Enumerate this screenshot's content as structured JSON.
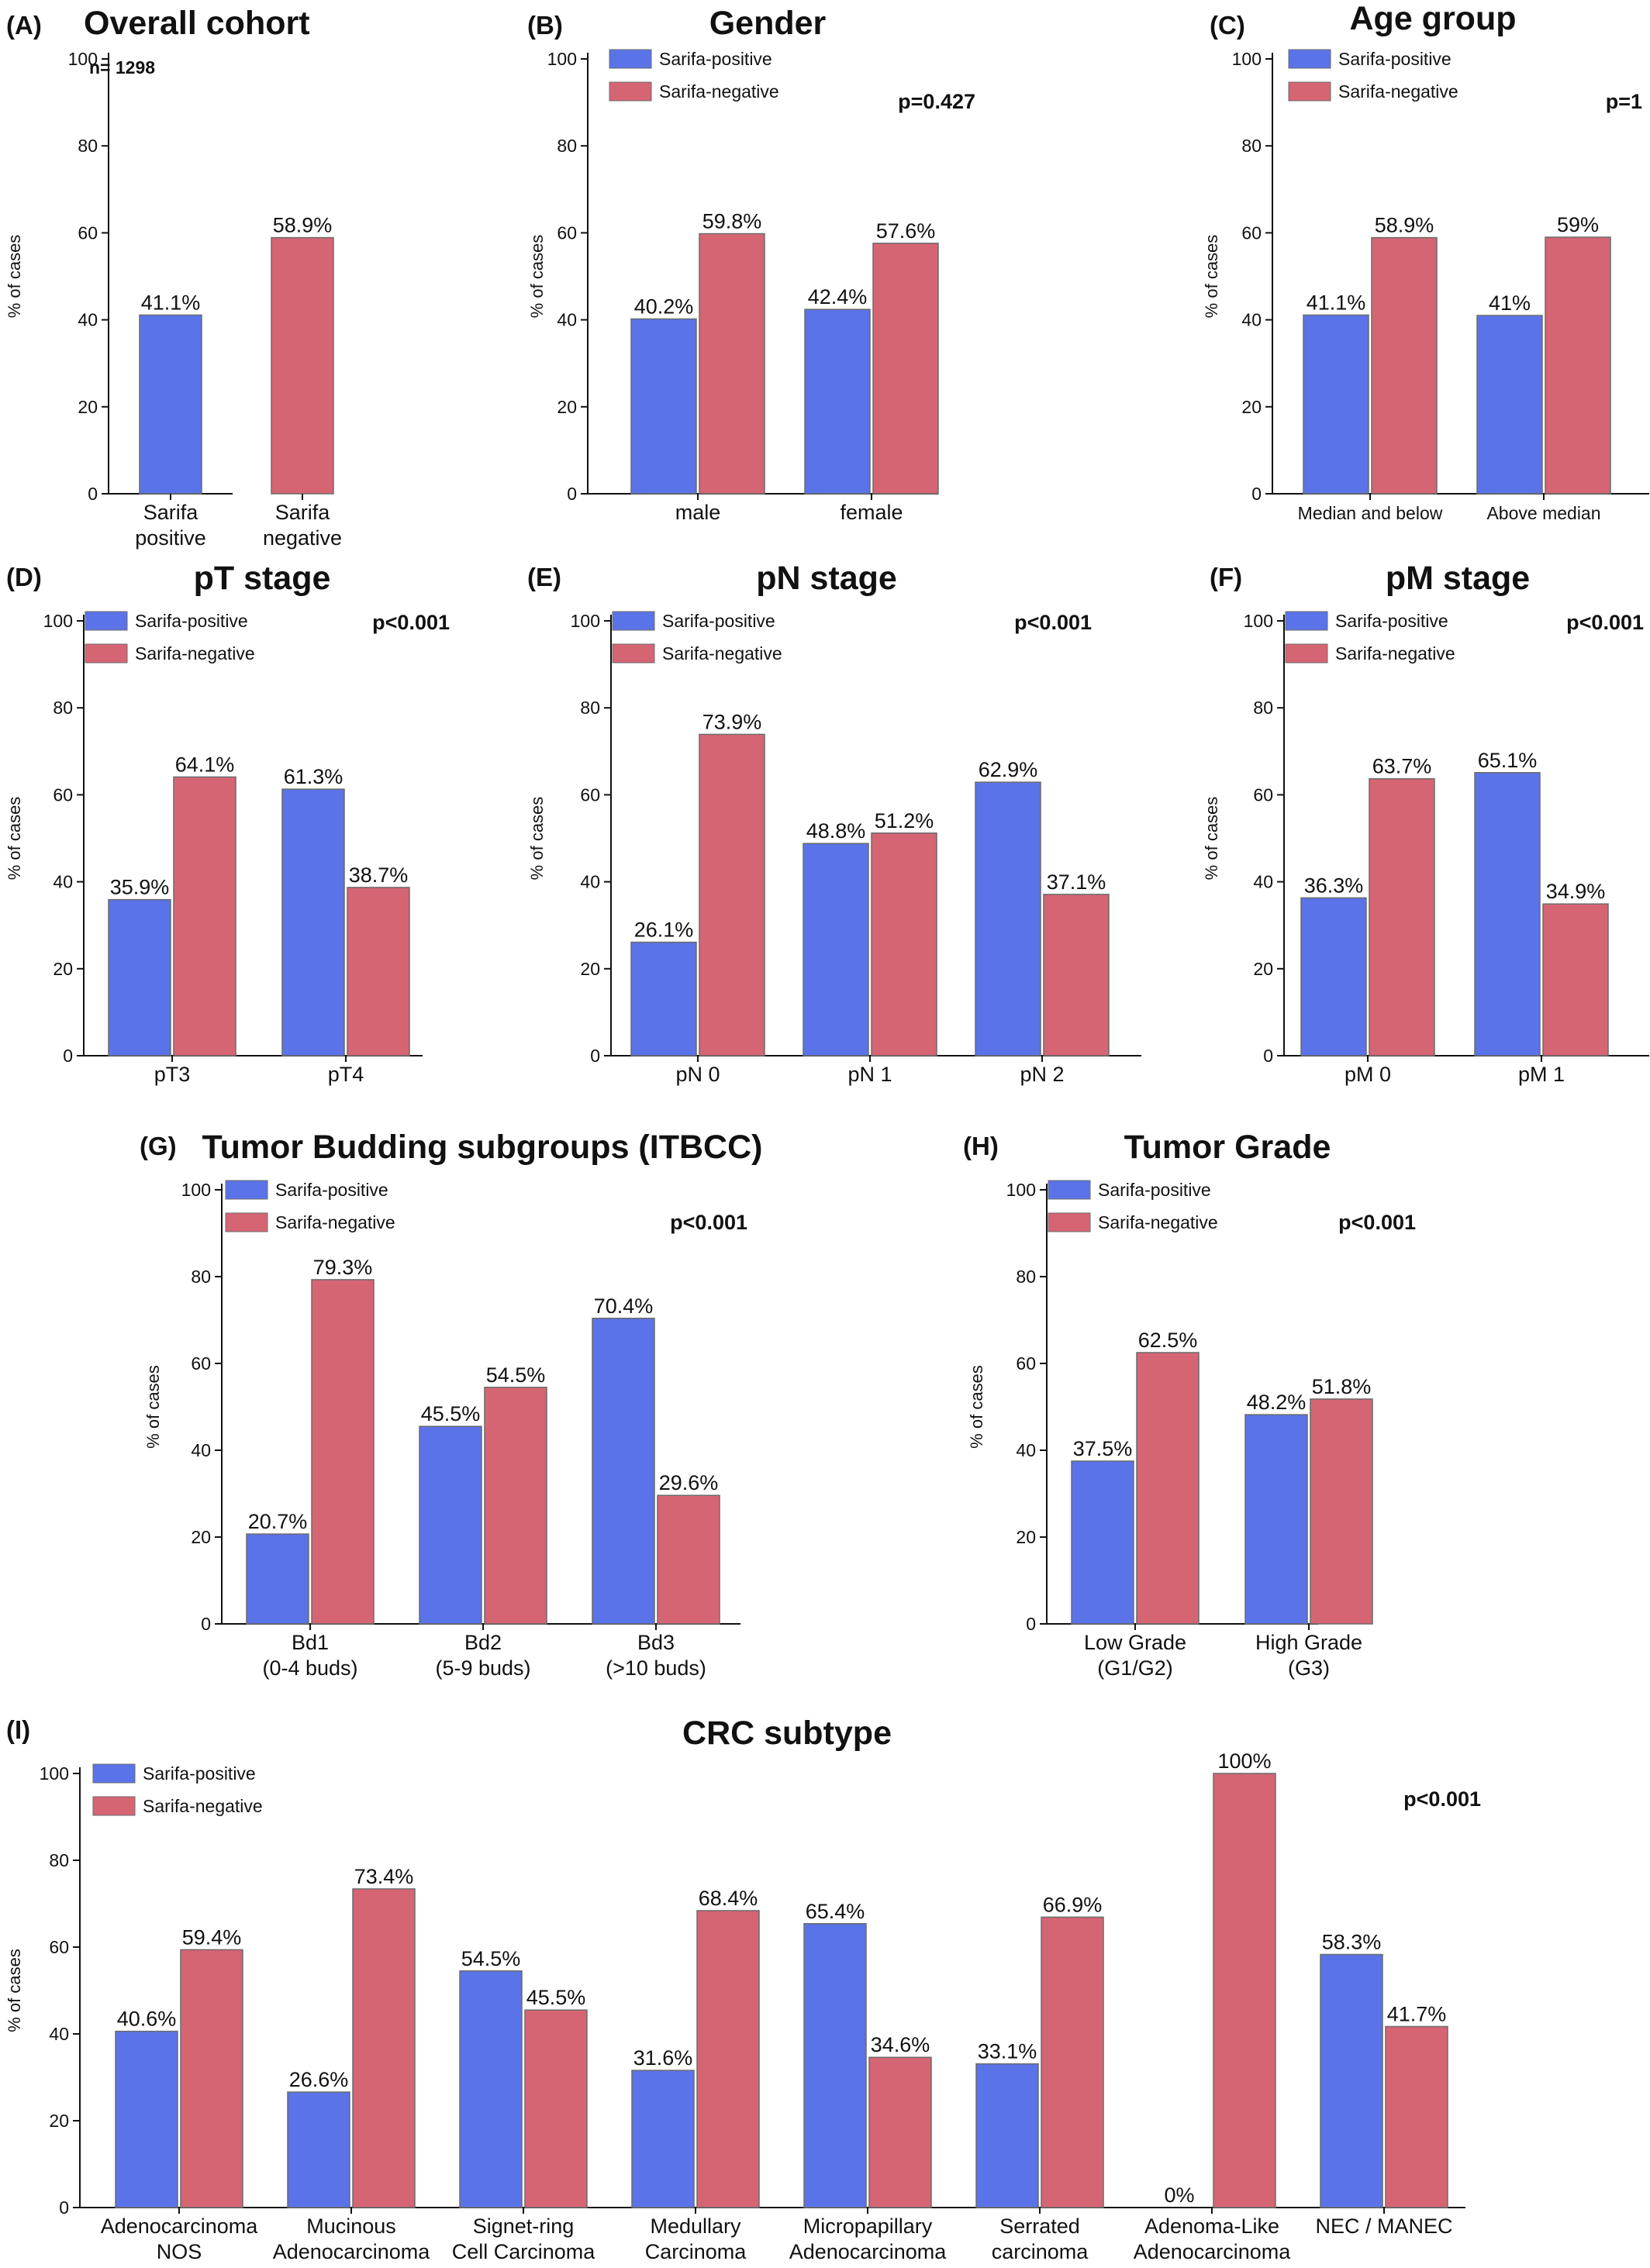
{
  "colors": {
    "sarifa_positive": "#5b73e8",
    "sarifa_negative": "#d66574",
    "axis": "#111111",
    "bar_edge": "#6b6b6b"
  },
  "legend": [
    "Sarifa-positive",
    "Sarifa-negative"
  ],
  "chart_data": [
    {
      "panel": "(A)",
      "title": "Overall cohort",
      "type": "bar",
      "ylabel": "% of cases",
      "ylim": [
        0,
        100
      ],
      "yticks": [
        0,
        20,
        40,
        60,
        80,
        100
      ],
      "annotation": "n= 1298",
      "legend": false,
      "pvalue": "",
      "categories": [
        [
          "Sarifa",
          "positive"
        ],
        [
          "Sarifa",
          "negative"
        ]
      ],
      "values": [
        41.1,
        58.9
      ],
      "value_labels": [
        "41.1%",
        "58.9%"
      ]
    },
    {
      "panel": "(B)",
      "title": "Gender",
      "type": "bar",
      "ylabel": "% of cases",
      "ylim": [
        0,
        100
      ],
      "yticks": [
        0,
        20,
        40,
        60,
        80,
        100
      ],
      "legend": true,
      "legend_position": "top-left",
      "pvalue": "p=0.427",
      "categories": [
        [
          "male"
        ],
        [
          "female"
        ]
      ],
      "series": [
        {
          "name": "Sarifa-positive",
          "values": [
            40.2,
            42.4
          ],
          "labels": [
            "40.2%",
            "42.4%"
          ]
        },
        {
          "name": "Sarifa-negative",
          "values": [
            59.8,
            57.6
          ],
          "labels": [
            "59.8%",
            "57.6%"
          ]
        }
      ]
    },
    {
      "panel": "(C)",
      "title": "Age group",
      "type": "bar",
      "ylabel": "% of cases",
      "ylim": [
        0,
        100
      ],
      "yticks": [
        0,
        20,
        40,
        60,
        80,
        100
      ],
      "legend": true,
      "legend_position": "top-left",
      "pvalue": "p=1",
      "categories": [
        [
          "Median and below"
        ],
        [
          "Above median"
        ]
      ],
      "series": [
        {
          "name": "Sarifa-positive",
          "values": [
            41.1,
            41.0
          ],
          "labels": [
            "41.1%",
            "41%"
          ]
        },
        {
          "name": "Sarifa-negative",
          "values": [
            58.9,
            59.0
          ],
          "labels": [
            "58.9%",
            "59%"
          ]
        }
      ]
    },
    {
      "panel": "(D)",
      "title": "pT stage",
      "type": "bar",
      "ylabel": "% of cases",
      "ylim": [
        0,
        100
      ],
      "yticks": [
        0,
        20,
        40,
        60,
        80,
        100
      ],
      "legend": true,
      "legend_position": "top-left",
      "pvalue": "p<0.001",
      "categories": [
        [
          "pT3"
        ],
        [
          "pT4"
        ]
      ],
      "series": [
        {
          "name": "Sarifa-positive",
          "values": [
            35.9,
            61.3
          ],
          "labels": [
            "35.9%",
            "61.3%"
          ]
        },
        {
          "name": "Sarifa-negative",
          "values": [
            64.1,
            38.7
          ],
          "labels": [
            "64.1%",
            "38.7%"
          ]
        }
      ]
    },
    {
      "panel": "(E)",
      "title": "pN stage",
      "type": "bar",
      "ylabel": "% of cases",
      "ylim": [
        0,
        100
      ],
      "yticks": [
        0,
        20,
        40,
        60,
        80,
        100
      ],
      "legend": true,
      "legend_position": "top-left",
      "pvalue": "p<0.001",
      "categories": [
        [
          "pN 0"
        ],
        [
          "pN 1"
        ],
        [
          "pN 2"
        ]
      ],
      "series": [
        {
          "name": "Sarifa-positive",
          "values": [
            26.1,
            48.8,
            62.9
          ],
          "labels": [
            "26.1%",
            "48.8%",
            "62.9%"
          ]
        },
        {
          "name": "Sarifa-negative",
          "values": [
            73.9,
            51.2,
            37.1
          ],
          "labels": [
            "73.9%",
            "51.2%",
            "37.1%"
          ]
        }
      ]
    },
    {
      "panel": "(F)",
      "title": "pM stage",
      "type": "bar",
      "ylabel": "% of cases",
      "ylim": [
        0,
        100
      ],
      "yticks": [
        0,
        20,
        40,
        60,
        80,
        100
      ],
      "legend": true,
      "legend_position": "top-left",
      "pvalue": "p<0.001",
      "categories": [
        [
          "pM 0"
        ],
        [
          "pM 1"
        ]
      ],
      "series": [
        {
          "name": "Sarifa-positive",
          "values": [
            36.3,
            65.1
          ],
          "labels": [
            "36.3%",
            "65.1%"
          ]
        },
        {
          "name": "Sarifa-negative",
          "values": [
            63.7,
            34.9
          ],
          "labels": [
            "63.7%",
            "34.9%"
          ]
        }
      ]
    },
    {
      "panel": "(G)",
      "title": "Tumor Budding subgroups (ITBCC)",
      "type": "bar",
      "ylabel": "% of cases",
      "ylim": [
        0,
        100
      ],
      "yticks": [
        0,
        20,
        40,
        60,
        80,
        100
      ],
      "legend": true,
      "legend_position": "top-left",
      "pvalue": "p<0.001",
      "categories": [
        [
          "Bd1",
          "(0-4 buds)"
        ],
        [
          "Bd2",
          "(5-9 buds)"
        ],
        [
          "Bd3",
          "(>10 buds)"
        ]
      ],
      "series": [
        {
          "name": "Sarifa-positive",
          "values": [
            20.7,
            45.5,
            70.4
          ],
          "labels": [
            "20.7%",
            "45.5%",
            "70.4%"
          ]
        },
        {
          "name": "Sarifa-negative",
          "values": [
            79.3,
            54.5,
            29.6
          ],
          "labels": [
            "79.3%",
            "54.5%",
            "29.6%"
          ]
        }
      ]
    },
    {
      "panel": "(H)",
      "title": "Tumor Grade",
      "type": "bar",
      "ylabel": "% of cases",
      "ylim": [
        0,
        100
      ],
      "yticks": [
        0,
        20,
        40,
        60,
        80,
        100
      ],
      "legend": true,
      "legend_position": "top-left",
      "pvalue": "p<0.001",
      "categories": [
        [
          "Low Grade",
          "(G1/G2)"
        ],
        [
          "High Grade",
          "(G3)"
        ]
      ],
      "series": [
        {
          "name": "Sarifa-positive",
          "values": [
            37.5,
            48.2
          ],
          "labels": [
            "37.5%",
            "48.2%"
          ]
        },
        {
          "name": "Sarifa-negative",
          "values": [
            62.5,
            51.8
          ],
          "labels": [
            "62.5%",
            "51.8%"
          ]
        }
      ]
    },
    {
      "panel": "(I)",
      "title": "CRC subtype",
      "type": "bar",
      "ylabel": "% of cases",
      "ylim": [
        0,
        100
      ],
      "yticks": [
        0,
        20,
        40,
        60,
        80,
        100
      ],
      "legend": true,
      "legend_position": "top-left",
      "pvalue": "p<0.001",
      "categories": [
        [
          "Adenocarcinoma",
          "NOS"
        ],
        [
          "Mucinous",
          "Adenocarcinoma"
        ],
        [
          "Signet-ring",
          "Cell Carcinoma"
        ],
        [
          "Medullary",
          "Carcinoma"
        ],
        [
          "Micropapillary",
          "Adenocarcinoma"
        ],
        [
          "Serrated",
          "carcinoma"
        ],
        [
          "Adenoma-Like",
          "Adenocarcinoma"
        ],
        [
          "NEC / MANEC"
        ]
      ],
      "series": [
        {
          "name": "Sarifa-positive",
          "values": [
            40.6,
            26.6,
            54.5,
            31.6,
            65.4,
            33.1,
            0,
            58.3
          ],
          "labels": [
            "40.6%",
            "26.6%",
            "54.5%",
            "31.6%",
            "65.4%",
            "33.1%",
            "0%",
            "58.3%"
          ]
        },
        {
          "name": "Sarifa-negative",
          "values": [
            59.4,
            73.4,
            45.5,
            68.4,
            34.6,
            66.9,
            100,
            41.7
          ],
          "labels": [
            "59.4%",
            "73.4%",
            "45.5%",
            "68.4%",
            "34.6%",
            "66.9%",
            "100%",
            "41.7%"
          ]
        }
      ]
    }
  ]
}
